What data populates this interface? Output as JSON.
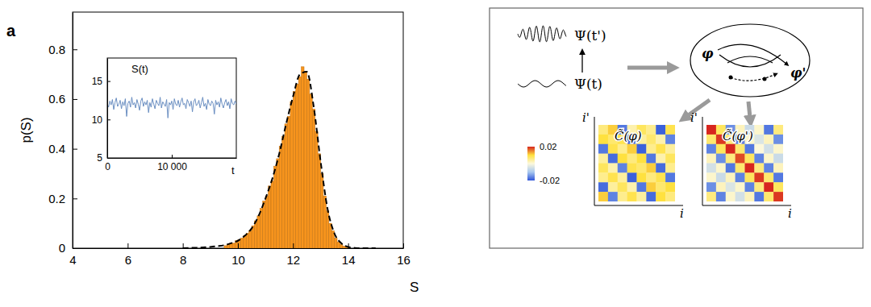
{
  "panel_label": "a",
  "chart_data": [
    {
      "type": "histogram",
      "x_label": "S",
      "y_label": "p(S)",
      "bins": [
        9.5,
        9.6,
        9.7,
        9.8,
        9.9,
        10,
        10.1,
        10.2,
        10.3,
        10.4,
        10.5,
        10.6,
        10.7,
        10.8,
        10.9,
        11,
        11.1,
        11.2,
        11.3,
        11.4,
        11.5,
        11.6,
        11.7,
        11.8,
        11.9,
        12,
        12.1,
        12.2,
        12.3,
        12.4,
        12.5,
        12.6,
        12.7,
        12.8,
        12.9,
        13,
        13.1,
        13.2,
        13.3,
        13.4,
        13.5,
        13.6,
        13.7,
        13.8,
        13.9,
        14
      ],
      "values": [
        0.01,
        0.015,
        0.02,
        0.02,
        0.03,
        0.035,
        0.04,
        0.05,
        0.06,
        0.07,
        0.09,
        0.11,
        0.13,
        0.16,
        0.19,
        0.21,
        0.25,
        0.27,
        0.33,
        0.36,
        0.41,
        0.45,
        0.5,
        0.53,
        0.59,
        0.63,
        0.66,
        0.69,
        0.73,
        0.71,
        0.68,
        0.62,
        0.56,
        0.47,
        0.38,
        0.3,
        0.21,
        0.15,
        0.1,
        0.07,
        0.04,
        0.025,
        0.015,
        0.008,
        0.004
      ],
      "color": "#f7941d",
      "xlim": [
        4,
        16
      ],
      "ylim": [
        0,
        0.95
      ],
      "xticks": [
        4,
        6,
        8,
        10,
        12,
        14,
        16
      ],
      "yticks": [
        0,
        0.2,
        0.4,
        0.6,
        0.8
      ],
      "fit": {
        "x": [
          8,
          8.25,
          8.5,
          8.75,
          9,
          9.25,
          9.5,
          9.75,
          10,
          10.25,
          10.5,
          10.75,
          11,
          11.25,
          11.5,
          11.75,
          12,
          12.25,
          12.5,
          12.75,
          13,
          13.25,
          13.5,
          13.75,
          14,
          14.25,
          14.5,
          14.75,
          15
        ],
        "values": [
          0,
          0.001,
          0.002,
          0.003,
          0.005,
          0.008,
          0.012,
          0.02,
          0.03,
          0.05,
          0.08,
          0.13,
          0.2,
          0.28,
          0.38,
          0.5,
          0.61,
          0.7,
          0.71,
          0.57,
          0.35,
          0.16,
          0.06,
          0.02,
          0.005,
          0.001,
          0,
          0,
          0
        ],
        "color": "#000000",
        "line_style": "dashed"
      }
    },
    {
      "type": "line",
      "title": "S(t)",
      "x_label": "t",
      "x": [
        0,
        200,
        400,
        600,
        800,
        1000,
        1200,
        1400,
        1600,
        1800,
        2000,
        2200,
        2400,
        2600,
        2800,
        3000,
        3200,
        3400,
        3600,
        3800,
        4000,
        4200,
        4400,
        4600,
        4800,
        5000,
        5200,
        5400,
        5600,
        5800,
        6000,
        6200,
        6400,
        6600,
        6800,
        7000,
        7200,
        7400,
        7600,
        7800,
        8000,
        8200,
        8400,
        8600,
        8800,
        9000,
        9200,
        9400,
        9600,
        9800,
        10000,
        10200,
        10400,
        10600,
        10800,
        11000,
        11200,
        11400,
        11600,
        11800,
        12000,
        12200,
        12400,
        12600,
        12800,
        13000,
        13200,
        13400,
        13600,
        13800,
        14000,
        14200,
        14400,
        14600,
        14800,
        15000,
        15200,
        15400,
        15600,
        15800,
        16000,
        16200,
        16400,
        16600,
        16800,
        17000,
        17200,
        17400,
        17600,
        17800,
        18000,
        18200,
        18400,
        18600,
        18800,
        19000,
        19200,
        19400,
        19600,
        19800,
        20000
      ],
      "values": [
        12.1,
        11.6,
        12.4,
        11.9,
        12.6,
        11.3,
        12.2,
        12.8,
        11.7,
        12.0,
        12.5,
        11.4,
        12.3,
        11.8,
        12.7,
        10.4,
        12.1,
        12.4,
        11.6,
        12.9,
        11.9,
        12.2,
        11.5,
        12.6,
        12.0,
        11.2,
        12.4,
        12.8,
        11.7,
        12.3,
        11.9,
        12.5,
        10.9,
        12.2,
        11.6,
        12.7,
        12.0,
        11.4,
        12.5,
        12.1,
        11.8,
        12.9,
        11.5,
        12.3,
        12.0,
        11.7,
        12.6,
        10.2,
        12.2,
        11.9,
        12.4,
        11.3,
        12.7,
        12.0,
        11.8,
        12.5,
        11.6,
        12.3,
        12.8,
        11.9,
        12.1,
        11.4,
        12.6,
        12.2,
        11.7,
        12.4,
        11.0,
        12.3,
        12.7,
        11.8,
        12.0,
        12.5,
        11.5,
        12.2,
        12.9,
        11.7,
        12.1,
        11.3,
        12.6,
        12.0,
        11.8,
        12.4,
        12.1,
        10.7,
        12.5,
        11.9,
        12.3,
        11.6,
        12.8,
        12.0,
        11.5,
        12.2,
        12.6,
        11.8,
        12.3,
        11.4,
        12.7,
        12.1,
        11.9,
        12.4,
        12.0
      ],
      "color": "#6b8fc2",
      "xlim": [
        0,
        20000
      ],
      "ylim": [
        5,
        18
      ],
      "xticks": [
        0,
        {
          "value": 10000,
          "label": "10 000"
        }
      ],
      "yticks": [
        5,
        10,
        15
      ]
    },
    {
      "type": "heatmap",
      "title": "C̃(φ)",
      "x_label": "i",
      "y_label": "i'",
      "cells": [
        [
          0.006,
          0.011,
          -0.017,
          0.003,
          0.008,
          0.005,
          -0.019,
          0.009
        ],
        [
          0.01,
          0.007,
          0.009,
          -0.018,
          0.004,
          0.007,
          0.003,
          -0.016
        ],
        [
          -0.017,
          0.009,
          0.005,
          0.011,
          -0.019,
          0.005,
          0.009,
          0.004
        ],
        [
          0.004,
          -0.018,
          0.01,
          0.006,
          0.01,
          -0.017,
          0.003,
          0.008
        ],
        [
          0.008,
          0.003,
          -0.016,
          0.009,
          0.007,
          0.011,
          -0.018,
          0.005
        ],
        [
          0.005,
          0.009,
          0.004,
          -0.019,
          0.01,
          0.006,
          0.009,
          -0.017
        ],
        [
          -0.018,
          0.004,
          0.008,
          0.003,
          -0.017,
          0.011,
          0.007,
          0.01
        ],
        [
          0.011,
          -0.016,
          0.005,
          0.009,
          0.004,
          -0.018,
          0.01,
          0.006
        ]
      ]
    },
    {
      "type": "heatmap",
      "title": "C̃(φ')",
      "x_label": "i",
      "y_label": "i'",
      "cells": [
        [
          0.02,
          0.008,
          -0.015,
          0.002,
          -0.006,
          0.001,
          -0.017,
          0.006
        ],
        [
          0.007,
          0.019,
          0.006,
          -0.016,
          0.001,
          -0.004,
          0.002,
          -0.015
        ],
        [
          -0.016,
          0.008,
          0.02,
          0.007,
          -0.017,
          0,
          -0.005,
          0.001
        ],
        [
          0.002,
          -0.015,
          0.006,
          0.018,
          0.008,
          -0.016,
          0.001,
          -0.006
        ],
        [
          -0.005,
          0.001,
          -0.017,
          0.007,
          0.02,
          0.006,
          -0.016,
          0.002
        ],
        [
          0.001,
          -0.006,
          0.002,
          -0.016,
          0.008,
          0.019,
          0.007,
          -0.017
        ],
        [
          -0.015,
          0.002,
          -0.004,
          0.001,
          -0.016,
          0.006,
          0.02,
          0.008
        ],
        [
          0.006,
          -0.016,
          0.001,
          -0.005,
          0.002,
          -0.017,
          0.007,
          0.019
        ]
      ]
    }
  ],
  "diagram": {
    "psi_new": "Ψ(t')",
    "psi_old": "Ψ(t)",
    "phi": "φ",
    "phi_prime": "φ'",
    "colorbar": {
      "range": [
        -0.02,
        0.02
      ],
      "ticks": [
        -0.02,
        0.02
      ]
    }
  }
}
